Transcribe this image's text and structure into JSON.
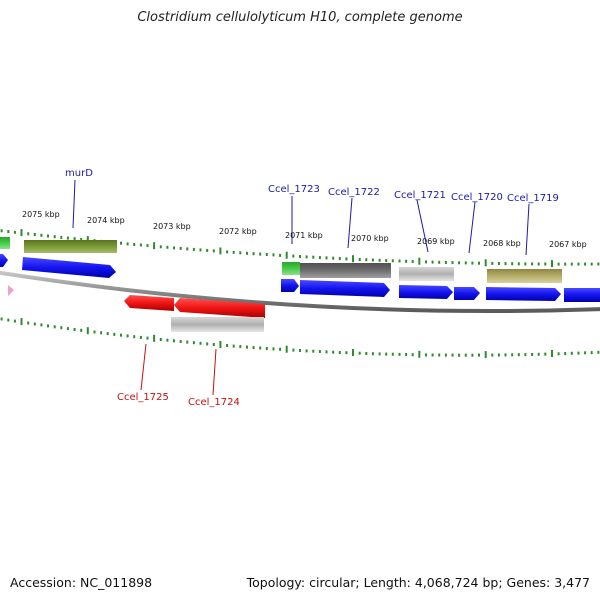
{
  "title": "Clostridium cellulolyticum H10, complete genome",
  "footer": {
    "accession": "Accession: NC_011898",
    "stats": "Topology: circular; Length: 4,068,724 bp; Genes: 3,477"
  },
  "scale_labels": [
    "2075 kbp",
    "2074 kbp",
    "2073 kbp",
    "2072 kbp",
    "2071 kbp",
    "2070 kbp",
    "2069 kbp",
    "2068 kbp",
    "2067 kbp"
  ],
  "gene_labels_forward": [
    "murD",
    "Ccel_1723",
    "Ccel_1722",
    "Ccel_1721",
    "Ccel_1720",
    "Ccel_1719"
  ],
  "gene_labels_reverse": [
    "Ccel_1725",
    "Ccel_1724"
  ],
  "colors": {
    "forward_label": "#1a1aa6",
    "reverse_label": "#c41010",
    "tick": "#2e8b2e",
    "cds_blue": "#1010ee",
    "cds_red": "#ee1010",
    "olive": "#6b8a2a",
    "green": "#3fc23f",
    "dark_gray": "#6a6a6a",
    "light_gray": "#b8b8b8",
    "khaki": "#b5ad6a",
    "backbone": "#888888"
  }
}
